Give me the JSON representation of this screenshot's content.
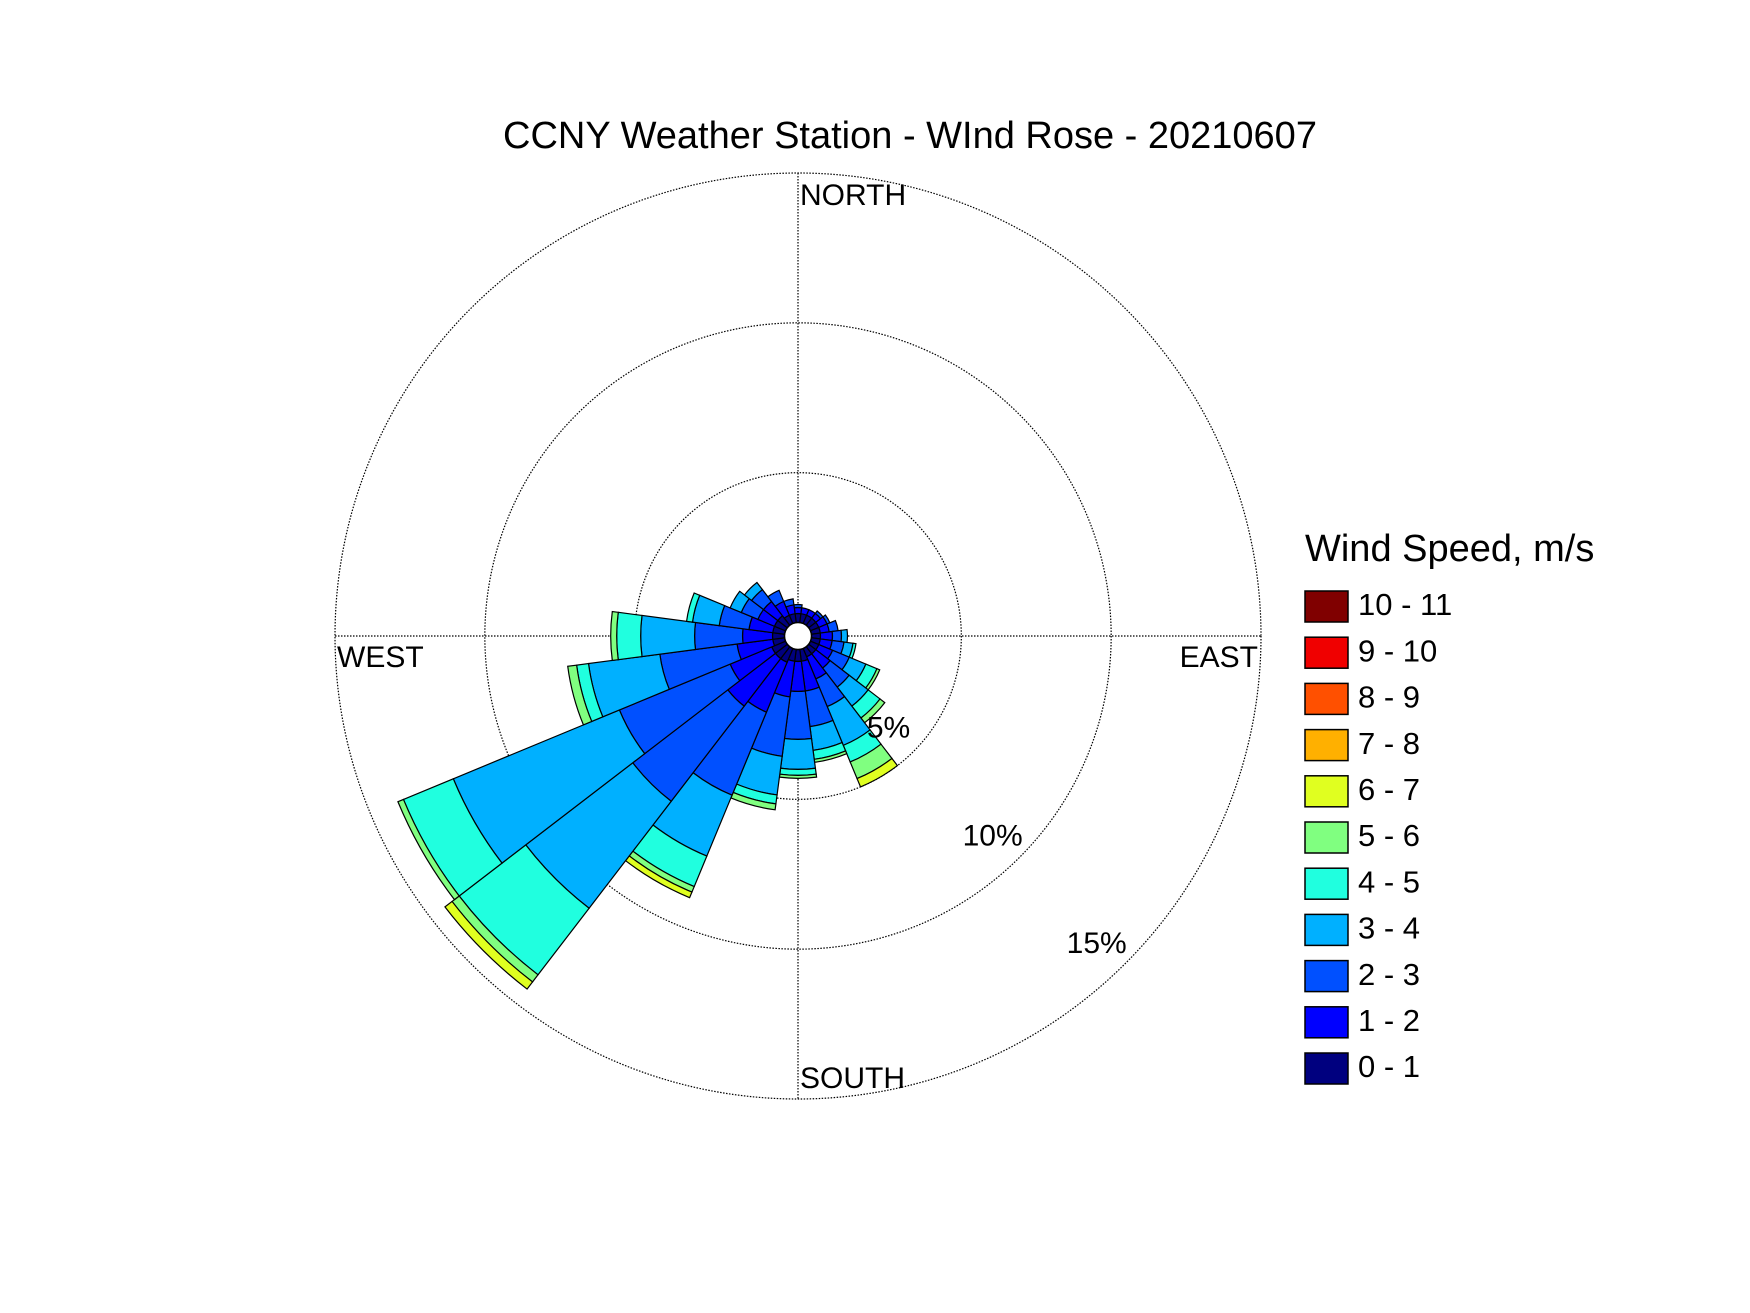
{
  "chart_data": {
    "type": "windrose",
    "title": "CCNY Weather Station - WInd Rose - 20210607",
    "legend_title": "Wind Speed, m/s",
    "compass_labels": [
      "NORTH",
      "EAST",
      "SOUTH",
      "WEST"
    ],
    "directions": [
      0,
      15,
      30,
      45,
      60,
      75,
      90,
      105,
      120,
      135,
      150,
      165,
      180,
      195,
      210,
      225,
      240,
      255,
      270,
      285,
      300,
      315,
      330,
      345
    ],
    "rlim": [
      0,
      15
    ],
    "rticks": [
      {
        "value": 5,
        "label": "5%"
      },
      {
        "value": 10,
        "label": "10%"
      },
      {
        "value": 15,
        "label": "15%"
      }
    ],
    "grid": true,
    "series": [
      {
        "name": "0 - 1",
        "color": "#00007f",
        "values": [
          0.3,
          0.3,
          0.3,
          0.3,
          0.3,
          0.3,
          0.3,
          0.3,
          0.3,
          0.3,
          0.3,
          0.4,
          0.4,
          0.4,
          0.5,
          0.5,
          0.5,
          0.4,
          0.4,
          0.4,
          0.4,
          0.4,
          0.3,
          0.3
        ]
      },
      {
        "name": "1 - 2",
        "color": "#0000ff",
        "values": [
          0.2,
          0.2,
          0.2,
          0.2,
          0.3,
          0.3,
          0.4,
          0.4,
          0.5,
          0.6,
          0.8,
          1.0,
          1.0,
          1.2,
          1.8,
          2.0,
          1.5,
          1.2,
          1.0,
          0.8,
          0.6,
          0.6,
          0.5,
          0.3
        ]
      },
      {
        "name": "2 - 3",
        "color": "#0050ff",
        "values": [
          0.1,
          0,
          0,
          0.1,
          0.1,
          0.3,
          0.3,
          0.4,
          0.6,
          0.8,
          1.0,
          1.2,
          1.6,
          2.0,
          3.0,
          4.0,
          4.0,
          2.6,
          1.6,
          1.0,
          0.6,
          0.5,
          0.4,
          0.2
        ]
      },
      {
        "name": "3 - 4",
        "color": "#00b0ff",
        "values": [
          0,
          0,
          0,
          0,
          0,
          0,
          0.2,
          0.3,
          0.6,
          0.8,
          1.4,
          0.8,
          1.0,
          1.3,
          2.2,
          4.5,
          6.0,
          2.4,
          1.8,
          0.9,
          0.4,
          0.3,
          0,
          0
        ]
      },
      {
        "name": "4 - 5",
        "color": "#20ffdf",
        "values": [
          0,
          0,
          0,
          0,
          0,
          0,
          0,
          0.1,
          0.4,
          0.5,
          0.6,
          0.3,
          0.2,
          0.3,
          1.1,
          2.8,
          1.8,
          0.4,
          0.8,
          0.2,
          0,
          0,
          0,
          0
        ]
      },
      {
        "name": "5 - 6",
        "color": "#80ff80",
        "values": [
          0,
          0,
          0,
          0,
          0,
          0,
          0,
          0,
          0.1,
          0.2,
          0.6,
          0.1,
          0.1,
          0.2,
          0.2,
          0.3,
          0.2,
          0.3,
          0.2,
          0,
          0,
          0,
          0,
          0
        ]
      },
      {
        "name": "6 - 7",
        "color": "#e0ff20",
        "values": [
          0,
          0,
          0,
          0,
          0,
          0,
          0,
          0,
          0,
          0,
          0.3,
          0,
          0,
          0,
          0.2,
          0.3,
          0,
          0,
          0,
          0,
          0,
          0,
          0,
          0
        ]
      },
      {
        "name": "7 - 8",
        "color": "#ffb000",
        "values": [
          0,
          0,
          0,
          0,
          0,
          0,
          0,
          0,
          0,
          0,
          0,
          0,
          0,
          0,
          0,
          0,
          0,
          0,
          0,
          0,
          0,
          0,
          0,
          0
        ]
      },
      {
        "name": "8 - 9",
        "color": "#ff5000",
        "values": [
          0,
          0,
          0,
          0,
          0,
          0,
          0,
          0,
          0,
          0,
          0,
          0,
          0,
          0,
          0,
          0,
          0,
          0,
          0,
          0,
          0,
          0,
          0,
          0
        ]
      },
      {
        "name": "9 - 10",
        "color": "#f00000",
        "values": [
          0,
          0,
          0,
          0,
          0,
          0,
          0,
          0,
          0,
          0,
          0,
          0,
          0,
          0,
          0,
          0,
          0,
          0,
          0,
          0,
          0,
          0,
          0,
          0
        ]
      },
      {
        "name": "10 - 11",
        "color": "#800000",
        "values": [
          0,
          0,
          0,
          0,
          0,
          0,
          0,
          0,
          0,
          0,
          0,
          0,
          0,
          0,
          0,
          0,
          0,
          0,
          0,
          0,
          0,
          0,
          0,
          0
        ]
      }
    ]
  }
}
